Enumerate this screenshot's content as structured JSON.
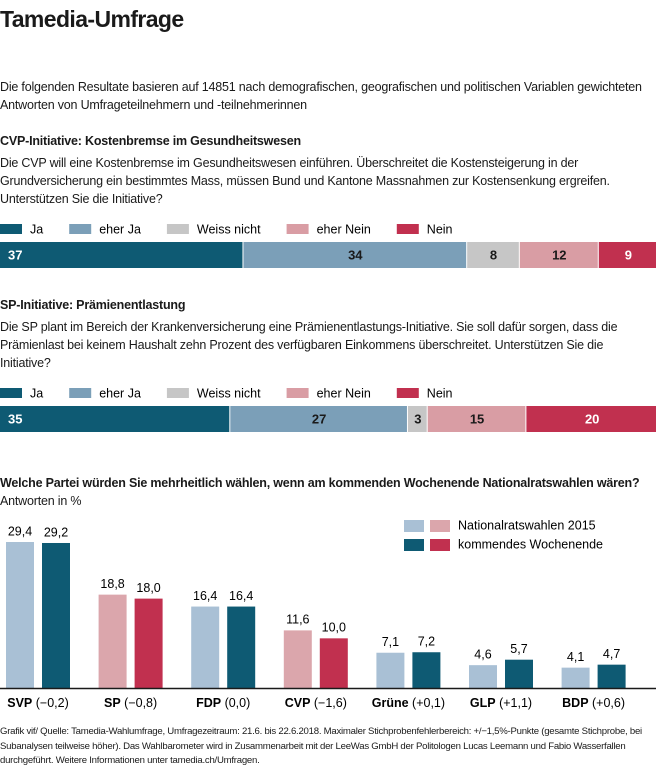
{
  "header": {
    "title": "Tamedia-Umfrage",
    "intro": "Die folgenden Resultate basieren auf 14851 nach demografischen, geografischen und politischen Variablen gewichteten Antworten von Umfrageteilnehmern und -teilnehmerinnen"
  },
  "chart_data": [
    {
      "type": "stacked-bar",
      "title": "CVP-Initiative: Kostenbremse im Gesundheitswesen",
      "subtitle": "Die CVP will eine Kostenbremse im Gesundheitswesen einführen. Überschreitet die Kostensteigerung in der Grundversicherung ein bestimmtes Mass, müssen Bund und Kantone Massnahmen zur Kostensenkung ergreifen. Unterstützen Sie die Initiative?",
      "series": [
        {
          "name": "Ja",
          "color": "#0e5a73",
          "values": [
            37
          ]
        },
        {
          "name": "eher Ja",
          "color": "#7b9fb8",
          "values": [
            34
          ]
        },
        {
          "name": "Weiss nicht",
          "color": "#c6c6c6",
          "values": [
            8
          ]
        },
        {
          "name": "eher Nein",
          "color": "#d99da4",
          "values": [
            12
          ]
        },
        {
          "name": "Nein",
          "color": "#c1304f",
          "values": [
            9
          ]
        }
      ]
    },
    {
      "type": "stacked-bar",
      "title": "SP-Initiative: Prämienentlastung",
      "subtitle": "Die SP plant im Bereich der Krankenversicherung eine Prämienentlastungs-Initiative. Sie soll dafür sorgen, dass die Prämienlast bei keinem Haushalt zehn Prozent des verfügbaren Einkommens überschreitet. Unterstützen Sie die Initiative?",
      "series": [
        {
          "name": "Ja",
          "color": "#0e5a73",
          "values": [
            35
          ]
        },
        {
          "name": "eher Ja",
          "color": "#7b9fb8",
          "values": [
            27
          ]
        },
        {
          "name": "Weiss nicht",
          "color": "#c6c6c6",
          "values": [
            3
          ]
        },
        {
          "name": "eher Nein",
          "color": "#d99da4",
          "values": [
            15
          ]
        },
        {
          "name": "Nein",
          "color": "#c1304f",
          "values": [
            20
          ]
        }
      ]
    },
    {
      "type": "grouped-bar",
      "title": "Welche Partei würden Sie mehrheitlich wählen, wenn am kommenden Wochenende Nationalratswahlen wären?",
      "subtitle": "Antworten in %",
      "categories": [
        "SVP",
        "SP",
        "FDP",
        "CVP",
        "Grüne",
        "GLP",
        "BDP"
      ],
      "category_changes": [
        "(−0,2)",
        "(−0,8)",
        "(0,0)",
        "(−1,6)",
        "(+0,1)",
        "(+1,1)",
        "(+0,6)"
      ],
      "series": [
        {
          "name": "Nationalratswahlen 2015",
          "colors": [
            "#a9c0d5",
            "#dba6ac",
            "#a9c0d5",
            "#dba6ac",
            "#a9c0d5",
            "#a9c0d5",
            "#a9c0d5"
          ],
          "values": [
            29.4,
            18.8,
            16.4,
            11.6,
            7.1,
            4.6,
            4.1
          ],
          "value_labels": [
            "29,4",
            "18,8",
            "16,4",
            "11,6",
            "7,1",
            "4,6",
            "4,1"
          ]
        },
        {
          "name": "kommendes Wochenende",
          "colors": [
            "#0e5a73",
            "#c1304f",
            "#0e5a73",
            "#c1304f",
            "#0e5a73",
            "#0e5a73",
            "#0e5a73"
          ],
          "values": [
            29.2,
            18.0,
            16.4,
            10.0,
            7.2,
            5.7,
            4.7
          ],
          "value_labels": [
            "29,2",
            "18,0",
            "16,4",
            "10,0",
            "7,2",
            "5,7",
            "4,7"
          ]
        }
      ]
    }
  ],
  "footer": "Grafik vif/ Quelle: Tamedia-Wahlumfrage, Umfragezeitraum: 21.6. bis 22.6.2018. Maximaler Stichprobenfehlerbereich: +/−1,5%-Punkte (gesamte Stichprobe, bei Subanalysen teilweise höher). Das Wahlbarometer wird in Zusammenarbeit mit der LeeWas GmbH der Politologen Lucas Leemann und Fabio Wasserfallen durchgeführt. Weitere Informationen unter tamedia.ch/Umfragen."
}
